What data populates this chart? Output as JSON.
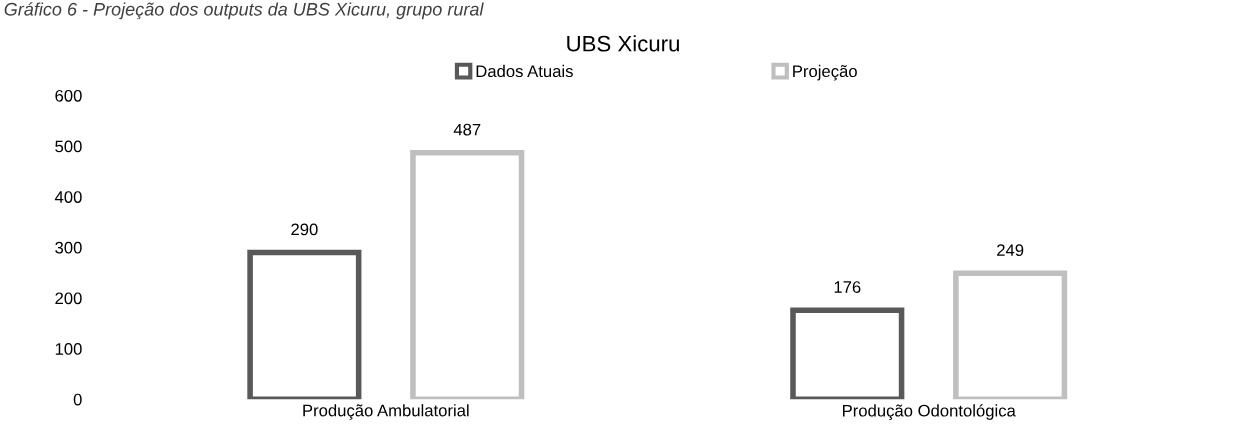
{
  "chart_data": {
    "type": "bar",
    "title": "UBS Xicuru",
    "annotations": [
      "Gráfico 6 - Projeção dos outputs da UBS Xicuru, grupo rural"
    ],
    "categories": [
      "Produção Ambulatorial",
      "Produção Odontológica"
    ],
    "series": [
      {
        "name": "Dados Atuais",
        "color": "#595959",
        "values": [
          290,
          176
        ]
      },
      {
        "name": "Projeção",
        "color": "#bfbfbf",
        "values": [
          487,
          249
        ]
      }
    ],
    "ylim": [
      0,
      600
    ],
    "yticks": [
      0,
      100,
      200,
      300,
      400,
      500,
      600
    ],
    "grid": false,
    "legend": "top",
    "data_labels": true
  }
}
